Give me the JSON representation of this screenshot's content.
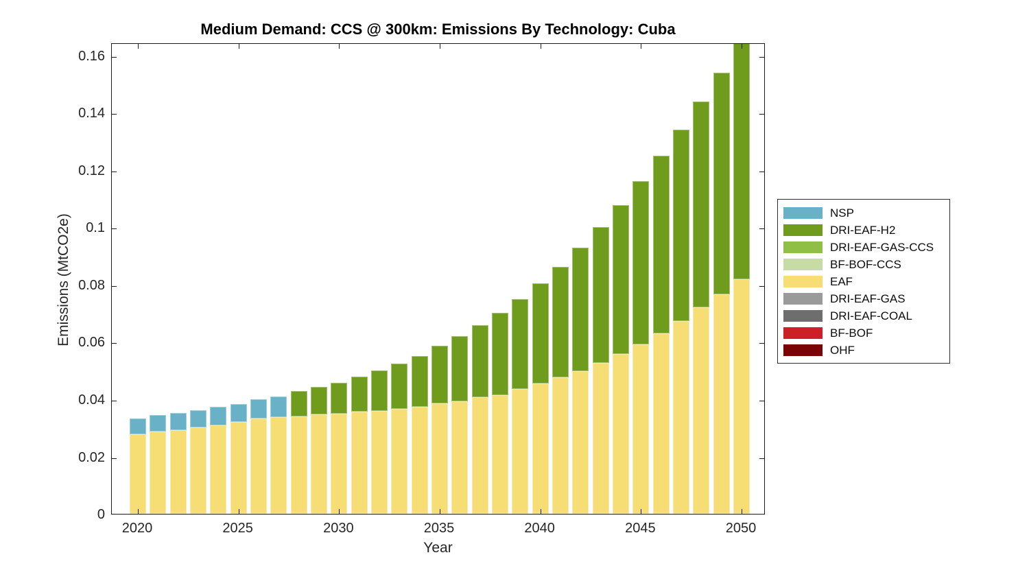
{
  "figure": {
    "title": "Medium Demand: CCS @ 300km: Emissions By Technology: Cuba",
    "xlabel": "Year",
    "ylabel": "Emissions (MtCO2e)"
  },
  "colors": {
    "axis": "#1a1a1a",
    "tick_text": "#262626",
    "background": "#ffffff"
  },
  "legend": {
    "position": "right-outside",
    "items": [
      {
        "label": "NSP",
        "color": "#68B1C7"
      },
      {
        "label": "DRI-EAF-H2",
        "color": "#6F9C1D"
      },
      {
        "label": "DRI-EAF-GAS-CCS",
        "color": "#8FBF44"
      },
      {
        "label": "BF-BOF-CCS",
        "color": "#C6DCA4"
      },
      {
        "label": "EAF",
        "color": "#F6DE74"
      },
      {
        "label": "DRI-EAF-GAS",
        "color": "#9A9A9A"
      },
      {
        "label": "DRI-EAF-COAL",
        "color": "#6E6E6E"
      },
      {
        "label": "BF-BOF",
        "color": "#CB2026"
      },
      {
        "label": "OHF",
        "color": "#7A0403"
      }
    ]
  },
  "chart_data": {
    "type": "bar",
    "stacked": true,
    "title": "Medium Demand: CCS @ 300km: Emissions By Technology: Cuba",
    "xlabel": "Year",
    "ylabel": "Emissions (MtCO2e)",
    "grid": false,
    "legend_position": "right-outside",
    "categories": [
      2020,
      2021,
      2022,
      2023,
      2024,
      2025,
      2026,
      2027,
      2028,
      2029,
      2030,
      2031,
      2032,
      2033,
      2034,
      2035,
      2036,
      2037,
      2038,
      2039,
      2040,
      2041,
      2042,
      2043,
      2044,
      2045,
      2046,
      2047,
      2048,
      2049,
      2050
    ],
    "xticks": [
      2020,
      2025,
      2030,
      2035,
      2040,
      2045,
      2050
    ],
    "yticks": {
      "values": [
        0,
        0.02,
        0.04,
        0.06,
        0.08,
        0.1,
        0.12,
        0.14,
        0.16
      ],
      "labels": [
        "0",
        "0.02",
        "0.04",
        "0.06",
        "0.08",
        "0.1",
        "0.12",
        "0.14",
        "0.16"
      ]
    },
    "ylim": [
      0,
      0.1645
    ],
    "stack_order": [
      "EAF",
      "NSP",
      "DRI-EAF-H2",
      "DRI-EAF-GAS-CCS",
      "BF-BOF-CCS",
      "DRI-EAF-GAS",
      "DRI-EAF-COAL",
      "BF-BOF",
      "OHF"
    ],
    "series": [
      {
        "name": "NSP",
        "color": "#68B1C7",
        "values": [
          0.0055,
          0.0057,
          0.006,
          0.006,
          0.0063,
          0.0064,
          0.0067,
          0.0072,
          0,
          0,
          0,
          0,
          0,
          0,
          0,
          0,
          0,
          0,
          0,
          0,
          0,
          0,
          0,
          0,
          0,
          0,
          0,
          0,
          0,
          0,
          0
        ]
      },
      {
        "name": "DRI-EAF-H2",
        "color": "#6F9C1D",
        "values": [
          0,
          0,
          0,
          0,
          0,
          0,
          0,
          0,
          0.0087,
          0.0095,
          0.0108,
          0.0124,
          0.014,
          0.0159,
          0.0178,
          0.0201,
          0.0227,
          0.025,
          0.0287,
          0.0315,
          0.035,
          0.0386,
          0.0431,
          0.0473,
          0.0519,
          0.057,
          0.062,
          0.0668,
          0.0718,
          0.0772,
          0.0825
        ]
      },
      {
        "name": "DRI-EAF-GAS-CCS",
        "color": "#8FBF44",
        "values": [
          0,
          0,
          0,
          0,
          0,
          0,
          0,
          0,
          0,
          0,
          0,
          0,
          0,
          0,
          0,
          0,
          0,
          0,
          0,
          0,
          0,
          0,
          0,
          0,
          0,
          0,
          0,
          0,
          0,
          0,
          0
        ]
      },
      {
        "name": "BF-BOF-CCS",
        "color": "#C6DCA4",
        "values": [
          0,
          0,
          0,
          0,
          0,
          0,
          0,
          0,
          0,
          0,
          0,
          0,
          0,
          0,
          0,
          0,
          0,
          0,
          0,
          0,
          0,
          0,
          0,
          0,
          0,
          0,
          0,
          0,
          0,
          0,
          0
        ]
      },
      {
        "name": "EAF",
        "color": "#F6DE74",
        "values": [
          0.0279,
          0.0287,
          0.0293,
          0.0302,
          0.031,
          0.032,
          0.0332,
          0.0338,
          0.0341,
          0.0347,
          0.035,
          0.0356,
          0.036,
          0.0366,
          0.0373,
          0.0385,
          0.0394,
          0.0408,
          0.0415,
          0.0435,
          0.0454,
          0.0477,
          0.0499,
          0.0527,
          0.0559,
          0.0591,
          0.063,
          0.0673,
          0.072,
          0.0767,
          0.082
        ]
      },
      {
        "name": "DRI-EAF-GAS",
        "color": "#9A9A9A",
        "values": [
          0,
          0,
          0,
          0,
          0,
          0,
          0,
          0,
          0,
          0,
          0,
          0,
          0,
          0,
          0,
          0,
          0,
          0,
          0,
          0,
          0,
          0,
          0,
          0,
          0,
          0,
          0,
          0,
          0,
          0,
          0
        ]
      },
      {
        "name": "DRI-EAF-COAL",
        "color": "#6E6E6E",
        "values": [
          0,
          0,
          0,
          0,
          0,
          0,
          0,
          0,
          0,
          0,
          0,
          0,
          0,
          0,
          0,
          0,
          0,
          0,
          0,
          0,
          0,
          0,
          0,
          0,
          0,
          0,
          0,
          0,
          0,
          0,
          0
        ]
      },
      {
        "name": "BF-BOF",
        "color": "#CB2026",
        "values": [
          0,
          0,
          0,
          0,
          0,
          0,
          0,
          0,
          0,
          0,
          0,
          0,
          0,
          0,
          0,
          0,
          0,
          0,
          0,
          0,
          0,
          0,
          0,
          0,
          0,
          0,
          0,
          0,
          0,
          0,
          0
        ]
      },
      {
        "name": "OHF",
        "color": "#7A0403",
        "values": [
          0,
          0,
          0,
          0,
          0,
          0,
          0,
          0,
          0,
          0,
          0,
          0,
          0,
          0,
          0,
          0,
          0,
          0,
          0,
          0,
          0,
          0,
          0,
          0,
          0,
          0,
          0,
          0,
          0,
          0,
          0
        ]
      }
    ]
  }
}
